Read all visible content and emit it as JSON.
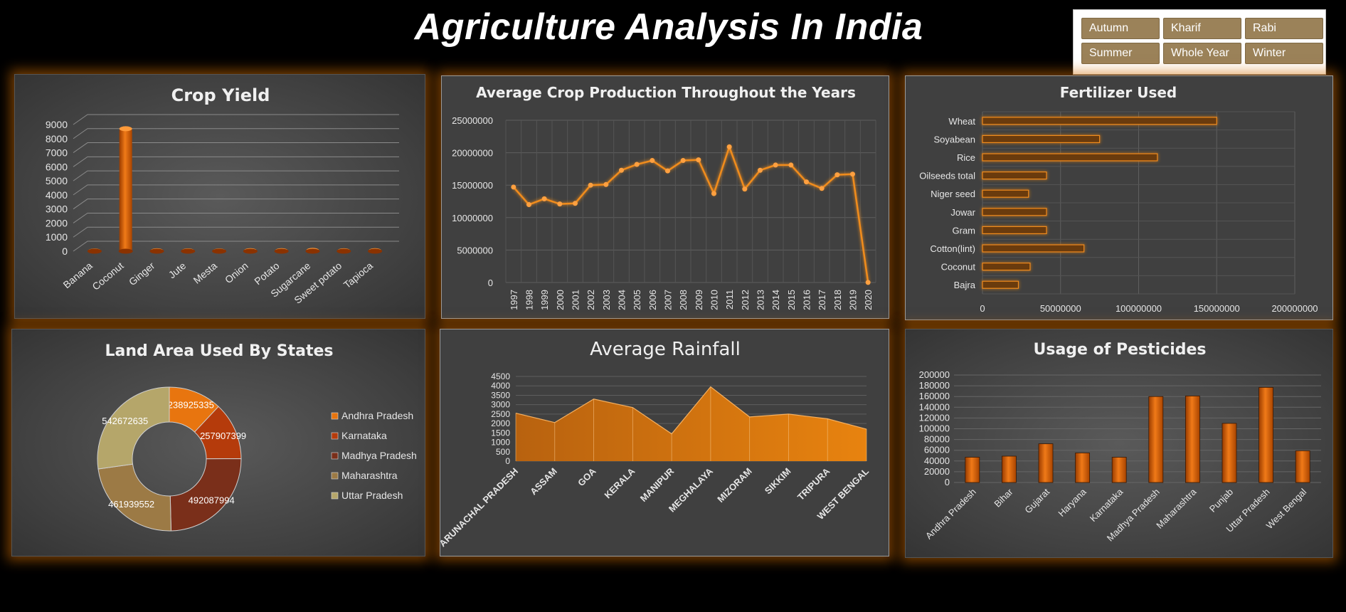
{
  "page": {
    "title": "Agriculture Analysis In India"
  },
  "slicer": {
    "items": [
      "Autumn",
      "Kharif",
      "Rabi",
      "Summer",
      "Whole Year",
      "Winter"
    ]
  },
  "colors": {
    "accent": "#e8750f",
    "background": "#000000",
    "panel": "#404040",
    "slicer": "#9b8259"
  },
  "chart_data": [
    {
      "id": "crop_yield",
      "type": "bar",
      "title": "Crop Yield",
      "categories": [
        "Banana",
        "Coconut",
        "Ginger",
        "Jute",
        "Mesta",
        "Onion",
        "Potato",
        "Sugarcane",
        "Sweet potato",
        "Tapioca"
      ],
      "values": [
        20,
        8700,
        30,
        25,
        20,
        40,
        40,
        60,
        30,
        40
      ],
      "yticks": [
        0,
        1000,
        2000,
        3000,
        4000,
        5000,
        6000,
        7000,
        8000,
        9000
      ],
      "ylim": [
        0,
        9000
      ],
      "grid": true
    },
    {
      "id": "avg_production",
      "type": "line",
      "title": "Average Crop Production Throughout the Years",
      "x": [
        "1997",
        "1998",
        "1999",
        "2000",
        "2001",
        "2002",
        "2003",
        "2004",
        "2005",
        "2006",
        "2007",
        "2008",
        "2009",
        "2010",
        "2011",
        "2012",
        "2013",
        "2014",
        "2015",
        "2016",
        "2017",
        "2018",
        "2019",
        "2020"
      ],
      "values": [
        14700000,
        12000000,
        12900000,
        12100000,
        12200000,
        15000000,
        15100000,
        17300000,
        18200000,
        18800000,
        17200000,
        18800000,
        18900000,
        13700000,
        20900000,
        14400000,
        17300000,
        18100000,
        18100000,
        15500000,
        14500000,
        16600000,
        16700000,
        10000
      ],
      "yticks": [
        0,
        5000000,
        10000000,
        15000000,
        20000000,
        25000000
      ],
      "ylim": [
        0,
        25000000
      ],
      "grid": true
    },
    {
      "id": "fertilizer",
      "type": "bar",
      "orientation": "horizontal",
      "title": "Fertilizer Used",
      "categories": [
        "Wheat",
        "Soyabean",
        "Rice",
        "Oilseeds total",
        "Niger seed",
        "Jowar",
        "Gram",
        "Cotton(lint)",
        "Coconut",
        "Bajra"
      ],
      "values": [
        150000000,
        75000000,
        112000000,
        41000000,
        29500000,
        41000000,
        41000000,
        65000000,
        30500000,
        23000000
      ],
      "xticks": [
        0,
        50000000,
        100000000,
        150000000,
        200000000
      ],
      "xlim": [
        0,
        200000000
      ],
      "grid": true
    },
    {
      "id": "land_area",
      "type": "pie",
      "subtype": "donut",
      "title": "Land Area Used By States",
      "categories": [
        "Andhra Pradesh",
        "Karnataka",
        "Madhya Pradesh",
        "Maharashtra",
        "Uttar Pradesh"
      ],
      "values": [
        238925335,
        257907399,
        492087994,
        461939552,
        542672635
      ],
      "data_labels": [
        "238925335",
        "257907399",
        "492087994",
        "461939552",
        "542672635"
      ],
      "colors": [
        "#e8750f",
        "#b53b0b",
        "#7a2f1a",
        "#9c7a45",
        "#b5a66a"
      ],
      "legend": "right"
    },
    {
      "id": "rainfall",
      "type": "area",
      "title": "Average Rainfall",
      "categories": [
        "ARUNACHAL PRADESH",
        "ASSAM",
        "GOA",
        "KERALA",
        "MANIPUR",
        "MEGHALAYA",
        "MIZORAM",
        "SIKKIM",
        "TRIPURA",
        "WEST BENGAL"
      ],
      "values": [
        2550,
        2050,
        3300,
        2850,
        1450,
        3950,
        2350,
        2500,
        2250,
        1700
      ],
      "yticks": [
        0,
        500,
        1000,
        1500,
        2000,
        2500,
        3000,
        3500,
        4000,
        4500
      ],
      "ylim": [
        0,
        4500
      ],
      "grid": true
    },
    {
      "id": "pesticides",
      "type": "bar",
      "title": "Usage of Pesticides",
      "categories": [
        "Andhra Pradesh",
        "Bihar",
        "Gujarat",
        "Haryana",
        "Karnataka",
        "Madhya Pradesh",
        "Maharashtra",
        "Punjab",
        "Uttar Pradesh",
        "West Bengal"
      ],
      "values": [
        47000,
        49000,
        72000,
        55000,
        47000,
        160000,
        161000,
        110000,
        177000,
        59000
      ],
      "yticks": [
        0,
        20000,
        40000,
        60000,
        80000,
        100000,
        120000,
        140000,
        160000,
        180000,
        200000
      ],
      "ylim": [
        0,
        200000
      ],
      "grid": true
    }
  ]
}
